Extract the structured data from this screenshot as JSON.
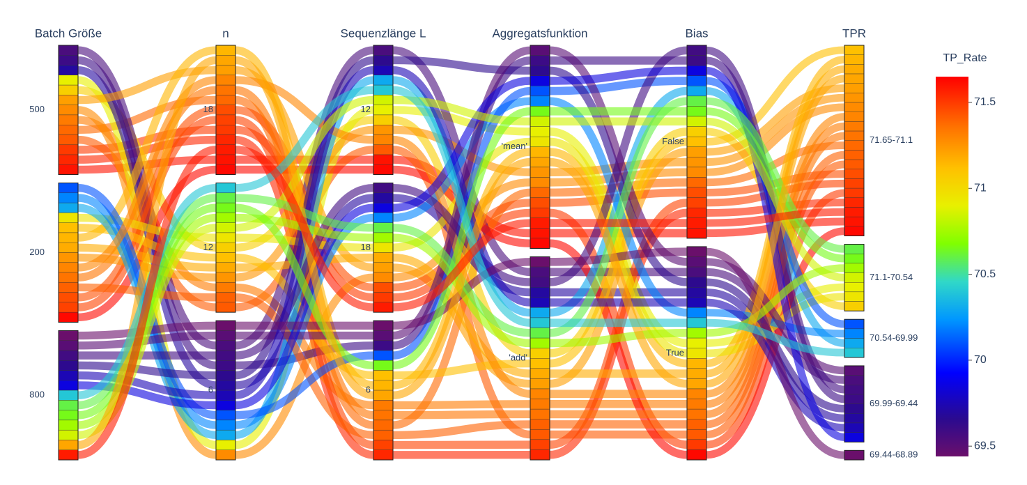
{
  "chart_data": {
    "type": "parcats",
    "dimensions": [
      {
        "label": "Batch Größe",
        "categories": [
          "500",
          "200",
          "800"
        ],
        "values": [
          "500",
          "500",
          "500",
          "500",
          "500",
          "500",
          "500",
          "500",
          "500",
          "500",
          "500",
          "500",
          "500",
          "200",
          "200",
          "200",
          "200",
          "200",
          "200",
          "200",
          "200",
          "200",
          "200",
          "200",
          "200",
          "200",
          "200",
          "800",
          "800",
          "800",
          "800",
          "800",
          "800",
          "800",
          "800",
          "800",
          "800",
          "800",
          "800",
          "800"
        ]
      },
      {
        "label": "n",
        "categories": [
          "18",
          "12",
          "6"
        ],
        "values": [
          "18",
          "18",
          "18",
          "12",
          "18",
          "12",
          "6",
          "12",
          "6",
          "6",
          "6",
          "6",
          "18",
          "18",
          "18",
          "18",
          "18",
          "12",
          "12",
          "18",
          "12",
          "12",
          "6",
          "6",
          "12",
          "6",
          "18",
          "6",
          "6",
          "6",
          "6",
          "6",
          "6",
          "12",
          "12",
          "12",
          "12",
          "18",
          "12",
          "18"
        ]
      },
      {
        "label": "Sequenzlänge L",
        "categories": [
          "12",
          "18",
          "6"
        ],
        "values": [
          "12",
          "6",
          "18",
          "12",
          "6",
          "6",
          "18",
          "12",
          "12",
          "18",
          "6",
          "12",
          "18",
          "12",
          "6",
          "18",
          "6",
          "12",
          "18",
          "6",
          "6",
          "18",
          "12",
          "18",
          "6",
          "6",
          "12",
          "12",
          "18",
          "6",
          "12",
          "18",
          "6",
          "12",
          "18",
          "6",
          "18",
          "6",
          "12",
          "18"
        ]
      },
      {
        "label": "Aggregatsfunktion",
        "categories": [
          "'mean'",
          "'add'"
        ],
        "values": [
          "'mean'",
          "'add'",
          "'mean'",
          "'add'",
          "'mean'",
          "'add'",
          "'mean'",
          "'add'",
          "'mean'",
          "'add'",
          "'mean'",
          "'add'",
          "'add'",
          "'mean'",
          "'add'",
          "'mean'",
          "'add'",
          "'mean'",
          "'add'",
          "'mean'",
          "'add'",
          "'mean'",
          "'add'",
          "'mean'",
          "'add'",
          "'mean'",
          "'add'",
          "'mean'",
          "'add'",
          "'mean'",
          "'add'",
          "'mean'",
          "'add'",
          "'mean'",
          "'add'",
          "'mean'",
          "'add'",
          "'mean'",
          "'add'",
          "'mean'"
        ]
      },
      {
        "label": "Bias",
        "categories": [
          "False",
          "True"
        ],
        "values": [
          "False",
          "False",
          "True",
          "True",
          "False",
          "True",
          "False",
          "False",
          "True",
          "True",
          "False",
          "True",
          "False",
          "True",
          "False",
          "False",
          "True",
          "False",
          "True",
          "True",
          "False",
          "True",
          "False",
          "True",
          "True",
          "False",
          "True",
          "True",
          "False",
          "True",
          "True",
          "False",
          "True",
          "False",
          "True",
          "False",
          "False",
          "True",
          "True",
          "False"
        ]
      },
      {
        "label": "TPR",
        "categories": [
          "71.65-71.1",
          "71.1-70.54",
          "70.54-69.99",
          "69.99-69.44",
          "69.44-68.89"
        ],
        "values": [
          "71.65-71.1",
          "71.65-71.1",
          "71.65-71.1",
          "71.65-71.1",
          "71.65-71.1",
          "71.65-71.1",
          "71.65-71.1",
          "71.1-70.54",
          "71.1-70.54",
          "69.99-69.44",
          "69.99-69.44",
          "69.99-69.44",
          "71.65-71.1",
          "71.65-71.1",
          "71.65-71.1",
          "71.65-71.1",
          "71.65-71.1",
          "71.65-71.1",
          "71.65-71.1",
          "71.65-71.1",
          "71.65-71.1",
          "71.1-70.54",
          "70.54-69.99",
          "70.54-69.99",
          "71.65-71.1",
          "70.54-69.99",
          "71.65-71.1",
          "69.99-69.44",
          "69.99-69.44",
          "69.99-69.44",
          "69.99-69.44",
          "69.99-69.44",
          "69.44-68.89",
          "71.1-70.54",
          "71.1-70.54",
          "71.1-70.54",
          "71.1-70.54",
          "71.65-71.1",
          "70.54-69.99",
          "71.65-71.1"
        ]
      }
    ],
    "line": {
      "color": [
        71.6,
        71.55,
        71.5,
        71.42,
        71.38,
        71.33,
        71.28,
        71.05,
        70.9,
        69.7,
        69.6,
        69.55,
        71.22,
        71.63,
        71.48,
        71.45,
        71.35,
        71.25,
        71.18,
        71.15,
        71.12,
        70.95,
        70.3,
        70.2,
        71.4,
        70.1,
        71.3,
        69.65,
        69.58,
        69.5,
        69.75,
        69.85,
        69.4,
        70.85,
        70.75,
        70.65,
        70.6,
        71.2,
        70.4,
        71.58
      ],
      "colorscale": [
        [
          0,
          "#6a0f6b"
        ],
        [
          0.1,
          "#2a0a90"
        ],
        [
          0.22,
          "#0000ff"
        ],
        [
          0.36,
          "#0096ff"
        ],
        [
          0.46,
          "#30d8c8"
        ],
        [
          0.56,
          "#80ff00"
        ],
        [
          0.66,
          "#e8f000"
        ],
        [
          0.76,
          "#ffc000"
        ],
        [
          0.87,
          "#ff7000"
        ],
        [
          1,
          "#ff0000"
        ]
      ],
      "colorbar": {
        "title": "TP_Rate",
        "lim": [
          69.44,
          71.65
        ],
        "ticks": [
          69.5,
          70,
          70.5,
          71,
          71.5
        ]
      }
    }
  }
}
